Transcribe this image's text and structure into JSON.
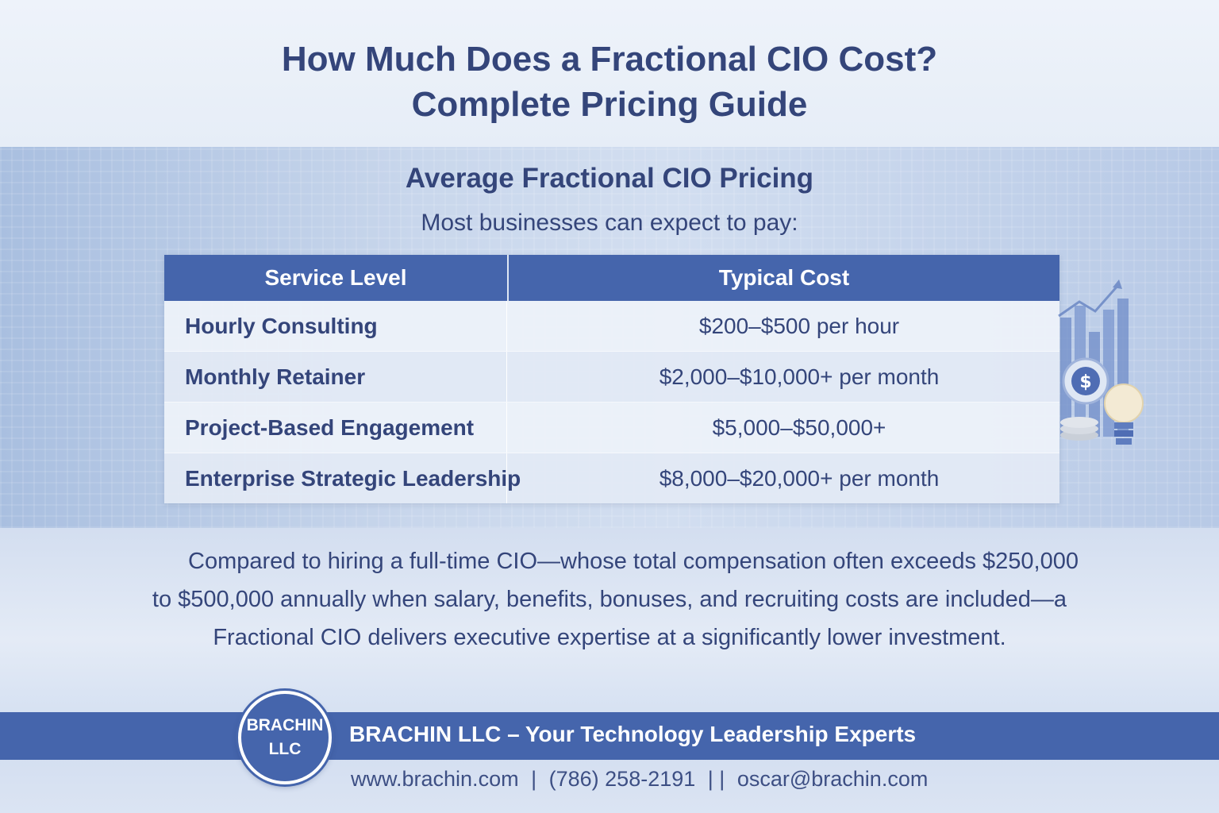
{
  "title": {
    "line1": "How Much Does a Fractional CIO Cost?",
    "line2": "Complete Pricing Guide"
  },
  "section": {
    "heading": "Average Fractional CIO Pricing",
    "intro": "Most businesses can expect to pay:"
  },
  "table": {
    "headers": [
      "Service Level",
      "Typical Cost"
    ],
    "rows": [
      {
        "service": "Hourly Consulting",
        "cost": "$200–$500 per hour"
      },
      {
        "service": "Monthly Retainer",
        "cost": "$2,000–$10,000+ per month"
      },
      {
        "service": "Project-Based Engagement",
        "cost": "$5,000–$50,000+"
      },
      {
        "service": "Enterprise Strategic Leadership",
        "cost": "$8,000–$20,000+ per month"
      }
    ]
  },
  "comparison": {
    "line1": "Compared to hiring a full-time CIO—whose total compensation often exceeds $250,000",
    "line2": "to $500,000 annually when salary, benefits, bonuses, and recruiting costs are included—a",
    "line3": "Fractional CIO delivers executive expertise at a significantly lower investment."
  },
  "footer": {
    "logo_line1": "BRACHIN",
    "logo_line2": "LLC",
    "tagline": "BRACHIN LLC – Your Technology Leadership Experts",
    "website": "www.brachin.com",
    "sep1": "|",
    "phone": "(786) 258-2191",
    "sep2": "| |",
    "email": "oscar@brachin.com"
  },
  "decoration": {
    "icons": [
      "bar-chart-icon",
      "dollar-coin-icon",
      "lightbulb-icon"
    ],
    "accent": "#4565ac"
  }
}
